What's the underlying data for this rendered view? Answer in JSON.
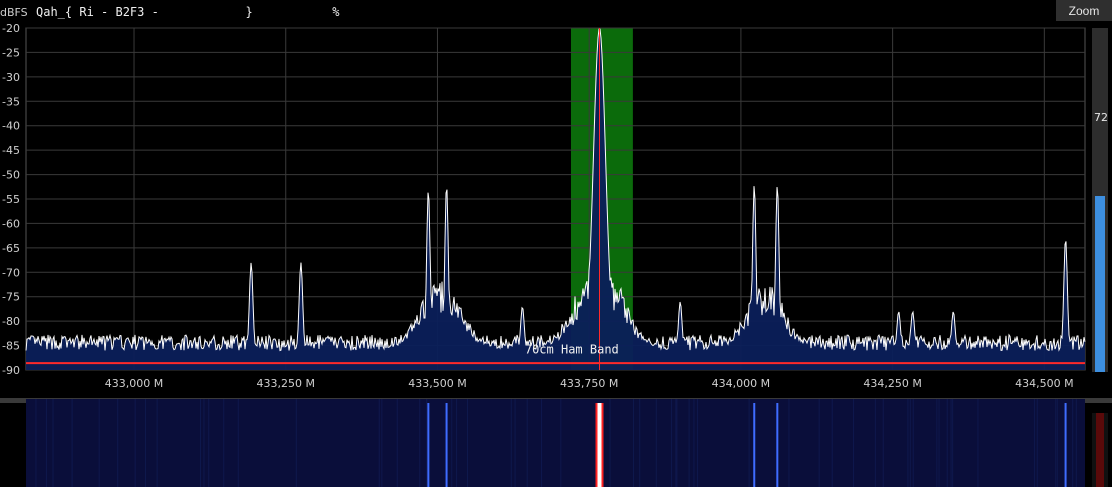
{
  "header": {
    "unit_label": "dBFS",
    "readout": "Qah_{ Ri - B2F3 -            }           %",
    "zoom_button": "Zoom"
  },
  "gain_slider": {
    "label": "72",
    "level_fraction": 0.72
  },
  "spectrum": {
    "y_ticks": [
      "-20",
      "-25",
      "-30",
      "-35",
      "-40",
      "-45",
      "-50",
      "-55",
      "-60",
      "-65",
      "-70",
      "-75",
      "-80",
      "-85",
      "-90"
    ],
    "x_ticks": [
      "433,000 M",
      "433,250 M",
      "433,500 M",
      "433,750 M",
      "434,000 M",
      "434,250 M",
      "434,500 M"
    ],
    "band_label": "70cm Ham Band",
    "colors": {
      "trace": "#ffffff",
      "fill": "#0b1f5a",
      "highlight": "#0b6b0b",
      "marker": "#ff2a2a",
      "grid": "#555555"
    },
    "peaks": [
      {
        "freq": 433193,
        "db": -68
      },
      {
        "freq": 433275,
        "db": -68
      },
      {
        "freq": 433485,
        "db": -53
      },
      {
        "freq": 433515,
        "db": -52
      },
      {
        "freq": 433640,
        "db": -77
      },
      {
        "freq": 433767,
        "db": -20
      },
      {
        "freq": 433900,
        "db": -76
      },
      {
        "freq": 434022,
        "db": -52
      },
      {
        "freq": 434060,
        "db": -52
      },
      {
        "freq": 434260,
        "db": -78
      },
      {
        "freq": 434283,
        "db": -78
      },
      {
        "freq": 434350,
        "db": -78
      },
      {
        "freq": 434535,
        "db": -63
      }
    ]
  },
  "waterfall": {
    "colors": {
      "background": "#0a0e3a",
      "line": "#3f6cff",
      "center": "#ffffff",
      "center_edge": "#ff2020"
    }
  }
}
